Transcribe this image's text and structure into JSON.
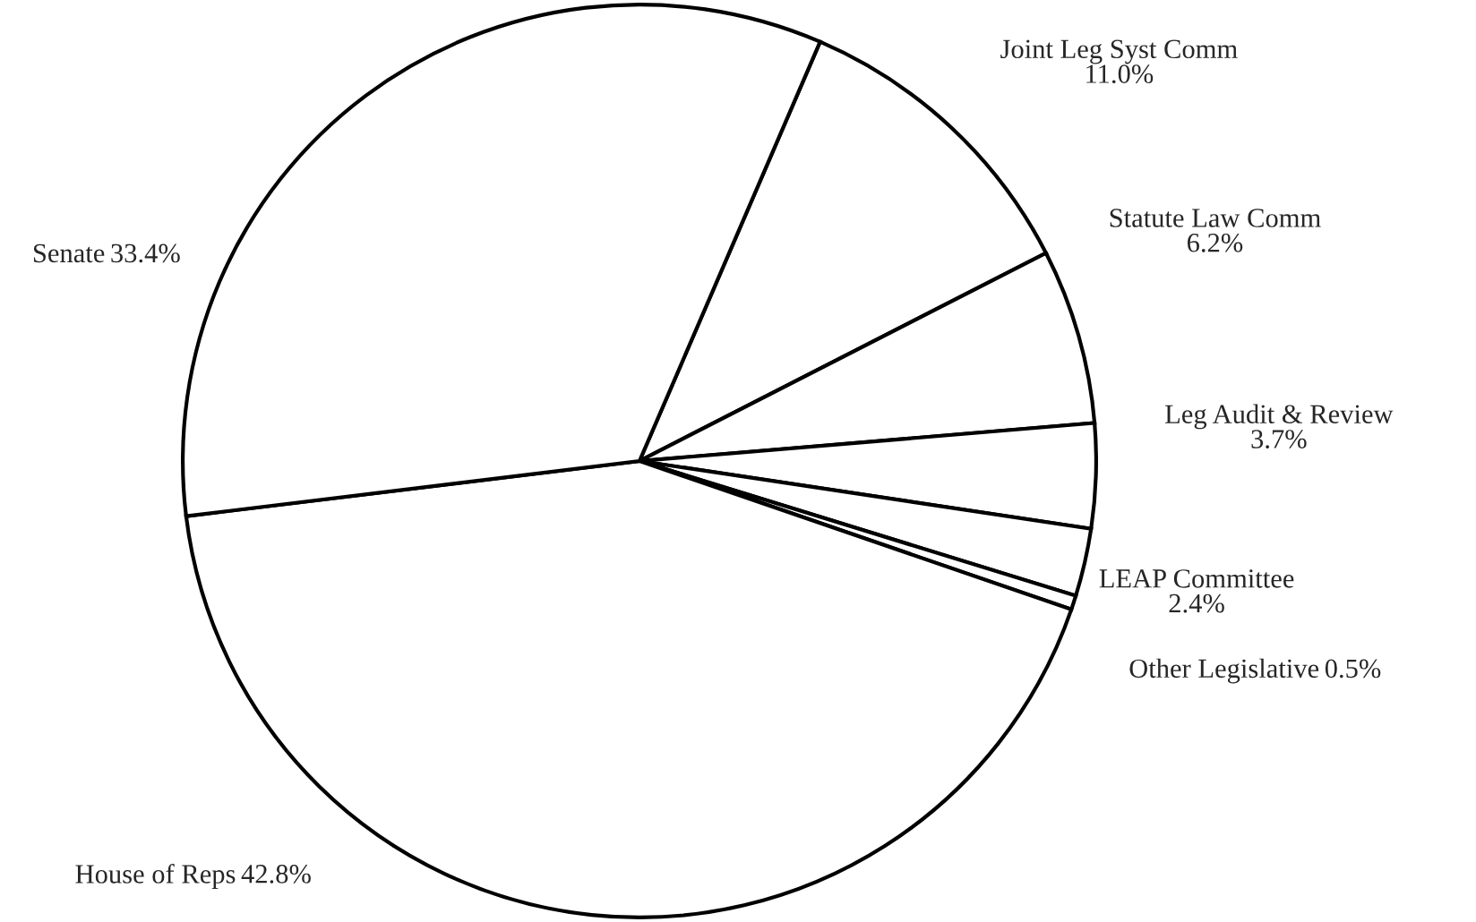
{
  "chart_data": {
    "type": "pie",
    "categories": [
      "Joint Leg Syst Comm",
      "Statute Law Comm",
      "Leg Audit & Review",
      "LEAP Committee",
      "Other Legislative",
      "House of Reps",
      "Senate"
    ],
    "values": [
      11.0,
      6.2,
      3.7,
      2.4,
      0.5,
      42.8,
      33.4
    ],
    "colors": [
      "#ffffff",
      "#ffffff",
      "#ffffff",
      "#ffffff",
      "#ffffff",
      "#ffffff",
      "#ffffff"
    ],
    "value_labels": [
      "11.0%",
      "6.2%",
      "3.7%",
      "2.4%",
      "0.5%",
      "42.8%",
      "33.4%"
    ]
  }
}
